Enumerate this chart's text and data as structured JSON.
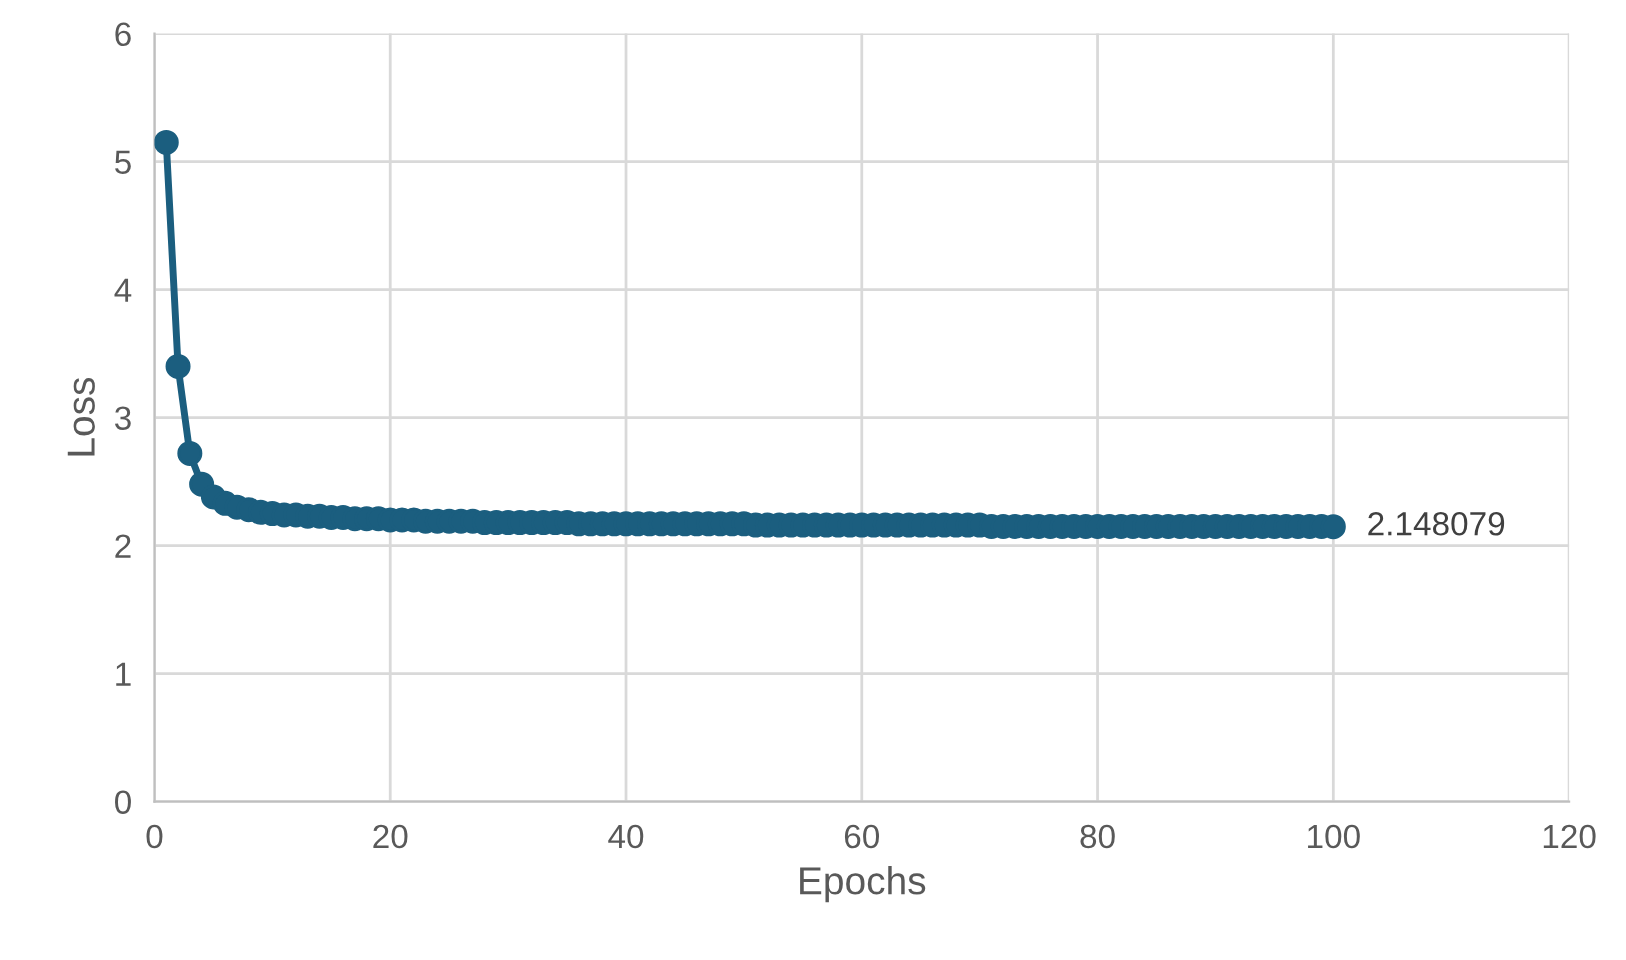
{
  "chart_data": {
    "type": "line",
    "xlabel": "Epochs",
    "ylabel": "Loss",
    "x": [
      1,
      2,
      3,
      4,
      5,
      6,
      7,
      8,
      9,
      10,
      11,
      12,
      13,
      14,
      15,
      16,
      17,
      18,
      19,
      20,
      21,
      22,
      23,
      24,
      25,
      26,
      27,
      28,
      29,
      30,
      31,
      32,
      33,
      34,
      35,
      36,
      37,
      38,
      39,
      40,
      41,
      42,
      43,
      44,
      45,
      46,
      47,
      48,
      49,
      50,
      51,
      52,
      53,
      54,
      55,
      56,
      57,
      58,
      59,
      60,
      61,
      62,
      63,
      64,
      65,
      66,
      67,
      68,
      69,
      70,
      71,
      72,
      73,
      74,
      75,
      76,
      77,
      78,
      79,
      80,
      81,
      82,
      83,
      84,
      85,
      86,
      87,
      88,
      89,
      90,
      91,
      92,
      93,
      94,
      95,
      96,
      97,
      98,
      99,
      100
    ],
    "series": [
      {
        "color": "#1b5e7f",
        "values": [
          5.15,
          3.4,
          2.72,
          2.48,
          2.38,
          2.33,
          2.3,
          2.28,
          2.26,
          2.25,
          2.24,
          2.24,
          2.23,
          2.23,
          2.22,
          2.22,
          2.21,
          2.21,
          2.21,
          2.2,
          2.2,
          2.2,
          2.19,
          2.19,
          2.19,
          2.19,
          2.19,
          2.18,
          2.18,
          2.18,
          2.18,
          2.18,
          2.18,
          2.18,
          2.18,
          2.17,
          2.17,
          2.17,
          2.17,
          2.17,
          2.17,
          2.17,
          2.17,
          2.17,
          2.17,
          2.17,
          2.17,
          2.17,
          2.17,
          2.17,
          2.16,
          2.16,
          2.16,
          2.16,
          2.16,
          2.16,
          2.16,
          2.16,
          2.16,
          2.16,
          2.16,
          2.16,
          2.16,
          2.16,
          2.16,
          2.16,
          2.16,
          2.16,
          2.16,
          2.16,
          2.15,
          2.15,
          2.15,
          2.15,
          2.15,
          2.15,
          2.15,
          2.15,
          2.15,
          2.15,
          2.15,
          2.15,
          2.15,
          2.15,
          2.15,
          2.15,
          2.15,
          2.15,
          2.15,
          2.15,
          2.15,
          2.15,
          2.15,
          2.15,
          2.15,
          2.15,
          2.15,
          2.15,
          2.15,
          2.148079
        ]
      }
    ],
    "annotations": [
      {
        "text": "2.148079",
        "x": 100,
        "y": 2.148079
      }
    ],
    "xlim": [
      0,
      120
    ],
    "xticks": [
      0,
      20,
      40,
      60,
      80,
      100,
      120
    ],
    "ylim": [
      0,
      6
    ],
    "yticks": [
      0,
      1,
      2,
      3,
      4,
      5,
      6
    ],
    "grid": true,
    "marker": "circle",
    "line_style": "solid",
    "legend": false
  }
}
